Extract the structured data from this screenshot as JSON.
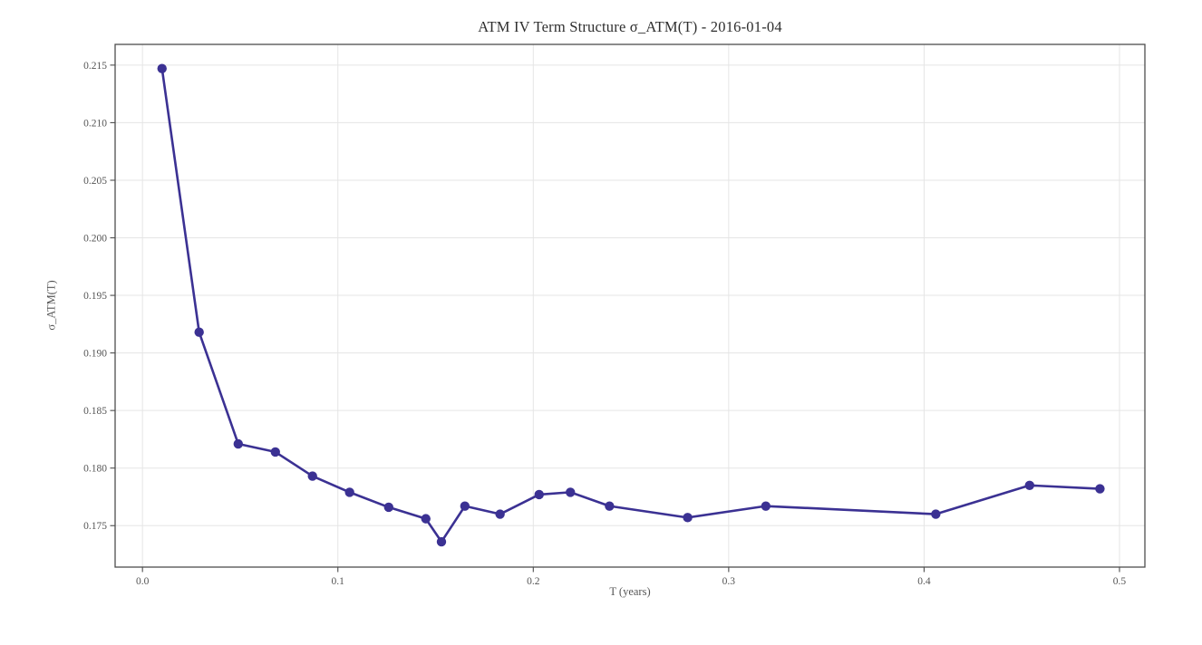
{
  "figure": {
    "title": "ATM IV Term Structure σ_ATM(T) - 2016-01-04",
    "xlabel": "T (years)",
    "ylabel": "σ_ATM(T)"
  },
  "chart_data": {
    "type": "line",
    "title": "ATM IV Term Structure σ_ATM(T) - 2016-01-04",
    "xlabel": "T (years)",
    "ylabel": "σ_ATM(T)",
    "xlim": [
      -0.014,
      0.513
    ],
    "ylim": [
      0.1714,
      0.2168
    ],
    "xticks": [
      0.0,
      0.1,
      0.2,
      0.3,
      0.4,
      0.5
    ],
    "xtick_labels": [
      "0.0",
      "0.1",
      "0.2",
      "0.3",
      "0.4",
      "0.5"
    ],
    "yticks": [
      0.175,
      0.18,
      0.185,
      0.19,
      0.195,
      0.2,
      0.205,
      0.21,
      0.215
    ],
    "ytick_labels": [
      "0.175",
      "0.180",
      "0.185",
      "0.190",
      "0.195",
      "0.200",
      "0.205",
      "0.210",
      "0.215"
    ],
    "grid": true,
    "legend": "none",
    "marker": "circle",
    "colors": {
      "line": "#3b3193",
      "marker": "#3b3193",
      "grid": "#e5e5e5",
      "spine": "#4d4d4d",
      "tick_label": "#555555",
      "background": "#ffffff"
    },
    "series": [
      {
        "name": "σ_ATM(T)",
        "x": [
          0.01,
          0.029,
          0.049,
          0.068,
          0.087,
          0.106,
          0.126,
          0.145,
          0.153,
          0.165,
          0.183,
          0.203,
          0.219,
          0.239,
          0.279,
          0.319,
          0.406,
          0.454,
          0.49
        ],
        "y": [
          0.2147,
          0.1918,
          0.1821,
          0.1814,
          0.1793,
          0.1779,
          0.1766,
          0.1756,
          0.1736,
          0.1767,
          0.176,
          0.1777,
          0.1779,
          0.1767,
          0.1757,
          0.1767,
          0.176,
          0.1785,
          0.1782
        ]
      }
    ]
  }
}
